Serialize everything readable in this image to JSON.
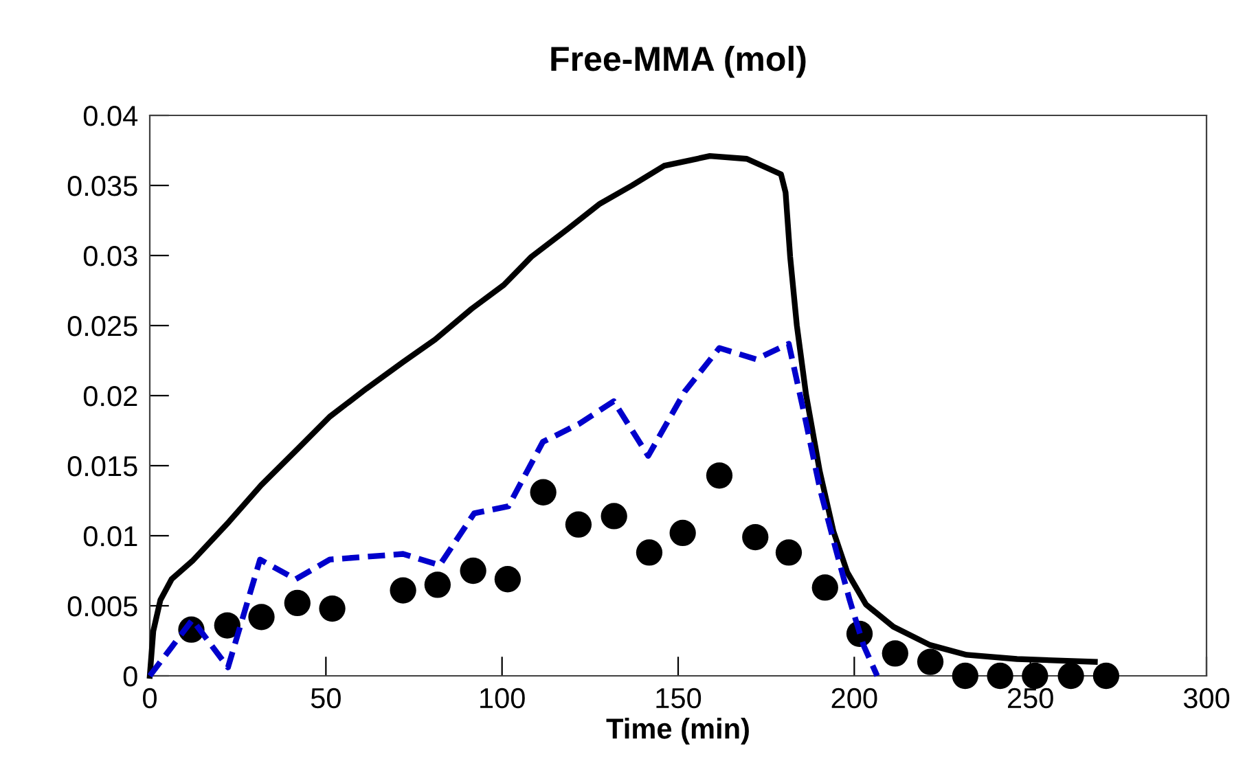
{
  "chart_data": {
    "type": "line",
    "title": "Free-MMA (mol)",
    "xlabel": "Time (min)",
    "xlim": [
      0,
      300
    ],
    "xticks": [
      0,
      50,
      100,
      150,
      200,
      250,
      300
    ],
    "ylim": [
      0,
      0.04
    ],
    "yticks": [
      0,
      0.005,
      0.01,
      0.015,
      0.02,
      0.025,
      0.03,
      0.035,
      0.04
    ],
    "grid": false,
    "legend": false,
    "series": [
      {
        "color": "#000000",
        "line_style": "solid",
        "marker": "none",
        "x": [
          0,
          1,
          3,
          6.2,
          12.1,
          22.5,
          31.6,
          42,
          51.1,
          61.5,
          71.9,
          81,
          91.4,
          100.5,
          108.3,
          118.7,
          127.8,
          136.9,
          146,
          159,
          169.5,
          179.2,
          180.5,
          181.8,
          183.7,
          186.3,
          190.2,
          194.1,
          198,
          203.3,
          211.1,
          221.5,
          231.9,
          246.2,
          268.3
        ],
        "values": [
          0,
          0.0032,
          0.0054,
          0.0069,
          0.0082,
          0.011,
          0.0136,
          0.0162,
          0.0185,
          0.0205,
          0.0224,
          0.024,
          0.0262,
          0.0279,
          0.0299,
          0.0319,
          0.0337,
          0.035,
          0.0364,
          0.0371,
          0.0369,
          0.0358,
          0.0345,
          0.0299,
          0.025,
          0.0201,
          0.0146,
          0.0103,
          0.0074,
          0.0051,
          0.0035,
          0.0022,
          0.0015,
          0.0012,
          0.001
        ]
      },
      {
        "color": "#0000cc",
        "line_style": "dashed",
        "marker": "none",
        "x": [
          0,
          12.1,
          22.2,
          31.3,
          41.4,
          51.1,
          71.9,
          82.3,
          92.1,
          101.8,
          111.6,
          122,
          131.7,
          141.5,
          151.9,
          161.7,
          172.1,
          181.4,
          185.7,
          190.3,
          194.8,
          198.7,
          202.6,
          206.5
        ],
        "values": [
          0,
          0.004,
          0.0006,
          0.0083,
          0.0069,
          0.0083,
          0.0087,
          0.0079,
          0.0116,
          0.0121,
          0.0167,
          0.018,
          0.0196,
          0.0157,
          0.0203,
          0.0234,
          0.0226,
          0.0237,
          0.0188,
          0.0133,
          0.009,
          0.0054,
          0.0022,
          0
        ]
      },
      {
        "type": "scatter",
        "color": "#000000",
        "marker": "circle",
        "x": [
          11.8,
          22,
          31.7,
          41.9,
          51.8,
          71.9,
          81.7,
          91.8,
          101.6,
          111.7,
          121.7,
          131.8,
          141.8,
          151.3,
          161.7,
          171.9,
          181.4,
          191.7,
          201.5,
          211.6,
          221.6,
          231.5,
          241.4,
          251.3,
          261.5,
          271.5
        ],
        "values": [
          0.0033,
          0.0036,
          0.0042,
          0.0052,
          0.0048,
          0.0061,
          0.0065,
          0.0075,
          0.0069,
          0.0131,
          0.0108,
          0.0114,
          0.0088,
          0.0102,
          0.0143,
          0.0099,
          0.0088,
          0.0063,
          0.003,
          0.0016,
          0.001,
          0,
          0,
          0,
          0,
          0
        ]
      }
    ]
  }
}
